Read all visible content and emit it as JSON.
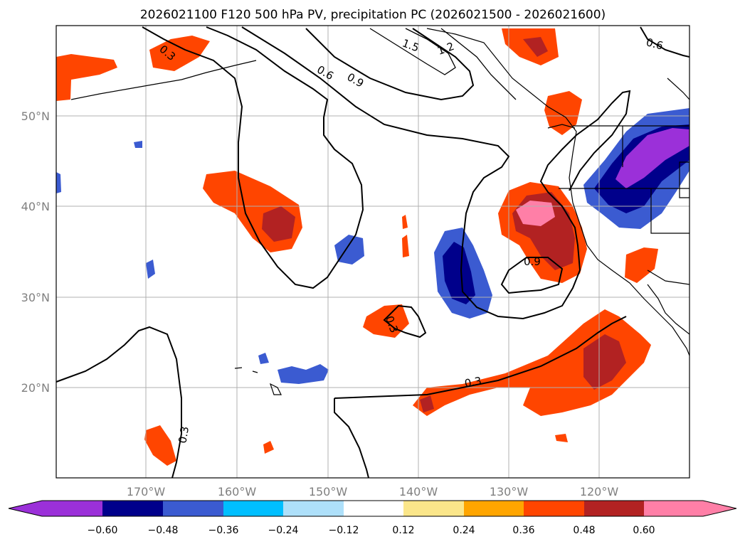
{
  "title": "2026021100 F120 500 hPa PV, precipitation PC (2026021500 - 2026021600)",
  "map": {
    "lon_labels": [
      "170°W",
      "160°W",
      "150°W",
      "140°W",
      "130°W",
      "120°W"
    ],
    "lat_labels": [
      "50°N",
      "40°N",
      "30°N",
      "20°N"
    ],
    "contour_labels": [
      "0.3",
      "0.6",
      "0.9",
      "1.5",
      "1.2",
      "0.6",
      "0.9",
      "0.3",
      "0.3",
      "0.3"
    ]
  },
  "colorbar": {
    "ticks": [
      "−0.60",
      "−0.48",
      "−0.36",
      "−0.24",
      "−0.12",
      "0.12",
      "0.24",
      "0.36",
      "0.48",
      "0.60"
    ],
    "colors": [
      "#9b30d9",
      "#00008b",
      "#3b5bd1",
      "#00bfff",
      "#aee0fa",
      "#ffffff",
      "#fbe68a",
      "#ffa500",
      "#ff4500",
      "#b22222",
      "#ff7fa7"
    ]
  }
}
